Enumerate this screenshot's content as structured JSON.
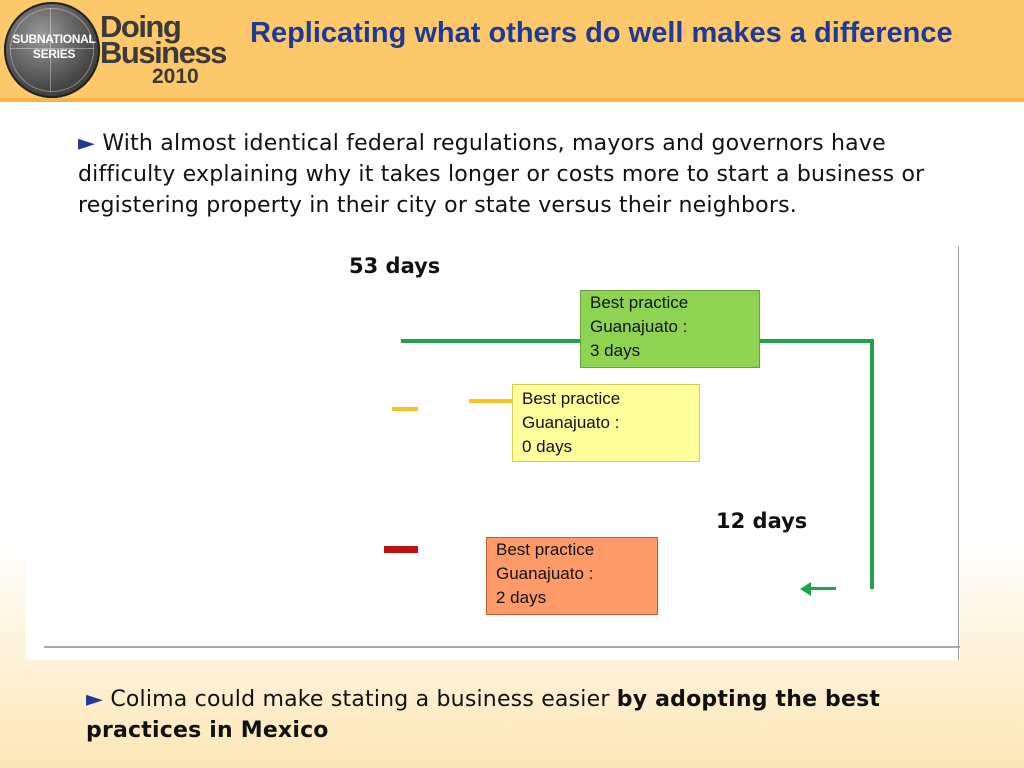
{
  "logo": {
    "series": [
      "SUBNATIONAL",
      "SERIES"
    ],
    "doing": "Doing",
    "business": "Business",
    "year": "2010"
  },
  "title": "Replicating what others do well makes a difference",
  "intro": {
    "bullet": "►",
    "text": " With almost identical federal regulations, mayors and governors have difficulty explaining why it takes longer or costs more to start a business or registering property in their city or state versus their neighbors."
  },
  "diagram": {
    "total_label": "53 days",
    "result_label": "12 days",
    "best_practices": [
      {
        "line1": "Best practice",
        "line2": "Guanajuato :",
        "line3": "3 days",
        "color": "#8ed452"
      },
      {
        "line1": "Best practice",
        "line2": "Guanajuato :",
        "line3": "0 days",
        "color": "#ffff9c"
      },
      {
        "line1": "Best practice",
        "line2": "Guanajuato :",
        "line3": "2 days",
        "color": "#fd9a68"
      }
    ],
    "colors": {
      "green": "#1fa34a",
      "yellow": "#f5c21e",
      "red": "#c01010"
    }
  },
  "closing": {
    "bullet": "►",
    "text": " Colima could make stating a business easier ",
    "bold": "by adopting the best practices in Mexico"
  }
}
